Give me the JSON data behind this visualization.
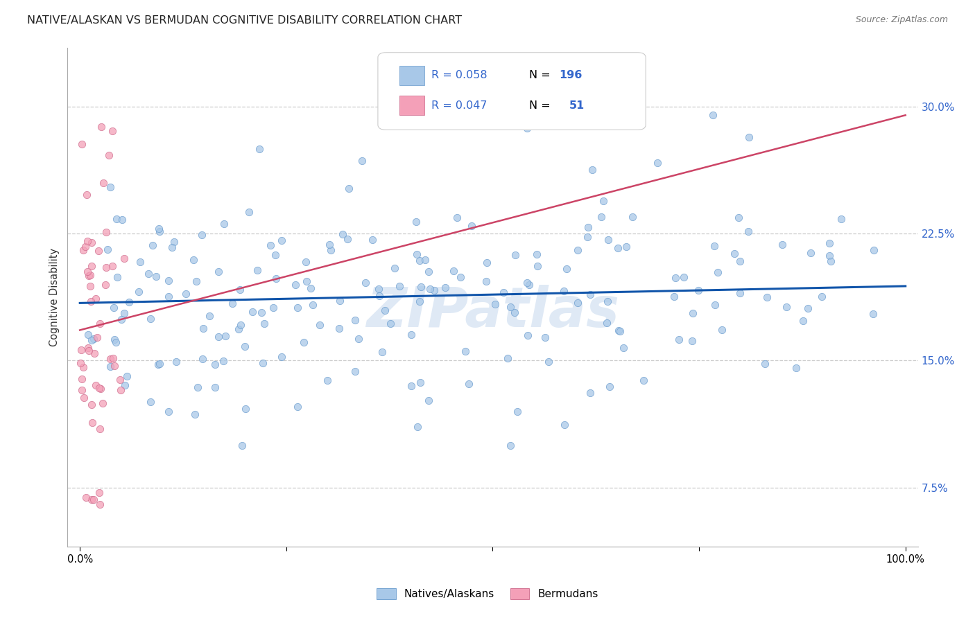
{
  "title": "NATIVE/ALASKAN VS BERMUDAN COGNITIVE DISABILITY CORRELATION CHART",
  "source": "Source: ZipAtlas.com",
  "ylabel": "Cognitive Disability",
  "yticks": [
    0.075,
    0.15,
    0.225,
    0.3
  ],
  "ytick_labels": [
    "7.5%",
    "15.0%",
    "22.5%",
    "30.0%"
  ],
  "xlim": [
    -0.015,
    1.015
  ],
  "ylim": [
    0.04,
    0.335
  ],
  "scatter_blue_color": "#a8c8e8",
  "scatter_blue_edge": "#6699cc",
  "scatter_pink_color": "#f4a0b8",
  "scatter_pink_edge": "#cc6688",
  "scatter_alpha": 0.75,
  "scatter_size": 55,
  "trend_blue_color": "#1155aa",
  "trend_blue_lw": 2.2,
  "trend_pink_color": "#cc4466",
  "trend_pink_lw": 1.8,
  "grid_color": "#cccccc",
  "grid_linestyle": "--",
  "watermark": "ZIPatlas",
  "watermark_color": "#c5d8ee",
  "watermark_alpha": 0.55,
  "background_color": "#ffffff",
  "title_fontsize": 11.5,
  "tick_label_color": "#3366cc",
  "legend_patch_blue": "#a8c8e8",
  "legend_patch_pink": "#f4a0b8",
  "legend_r_n_color": "#000000",
  "legend_val_color": "#3366cc",
  "bottom_legend_label_blue": "Natives/Alaskans",
  "bottom_legend_label_pink": "Bermudans"
}
